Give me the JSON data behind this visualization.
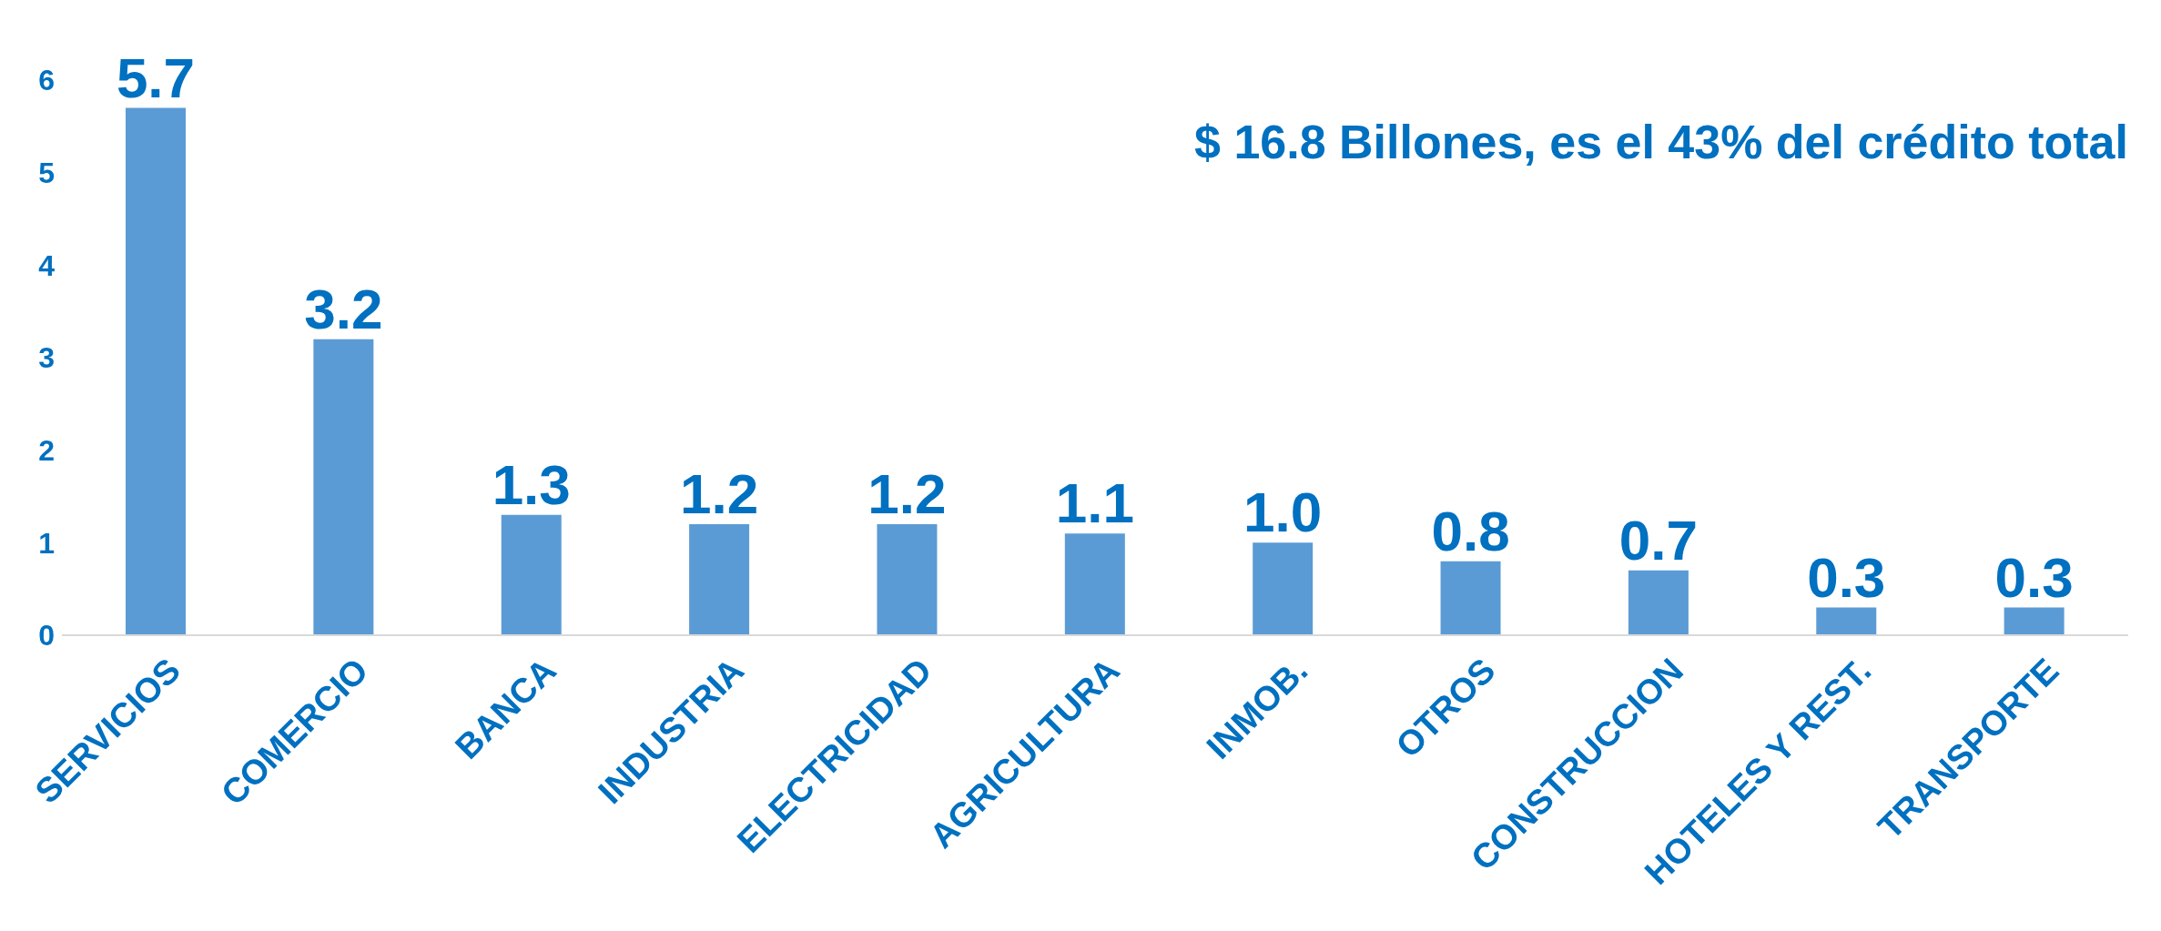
{
  "chart_data": {
    "type": "bar",
    "categories": [
      "SERVICIOS",
      "COMERCIO",
      "BANCA",
      "INDUSTRIA",
      "ELECTRICIDAD",
      "AGRICULTURA",
      "INMOB.",
      "OTROS",
      "CONSTRUCCION",
      "HOTELES Y REST.",
      "TRANSPORTE"
    ],
    "values": [
      5.7,
      3.2,
      1.3,
      1.2,
      1.2,
      1.1,
      1.0,
      0.8,
      0.7,
      0.3,
      0.3
    ],
    "value_labels": [
      "5.7",
      "3.2",
      "1.3",
      "1.2",
      "1.2",
      "1.1",
      "1.0",
      "0.8",
      "0.7",
      "0.3",
      "0.3"
    ],
    "color": "#5b9bd5",
    "ylim": [
      0,
      6
    ],
    "yticks": [
      0,
      1,
      2,
      3,
      4,
      5,
      6
    ],
    "grid": false,
    "annotations": [
      "$ 16.8 Billones, es el 43% del crédito total"
    ]
  }
}
